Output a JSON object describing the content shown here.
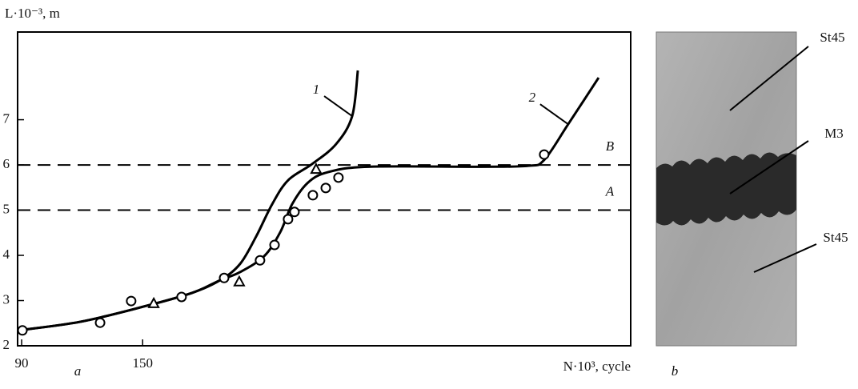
{
  "chart_data": {
    "type": "line",
    "y_label": "L·10⁻³, m",
    "x_label": "N·10³, cycle",
    "panel_label": "a",
    "xlim": [
      88,
      392
    ],
    "ylim": [
      2,
      8.94
    ],
    "xticks": [
      90,
      150
    ],
    "yticks": [
      2,
      3,
      4,
      5,
      6,
      7
    ],
    "grid": false,
    "color": "#000000",
    "series": [
      {
        "name": "1",
        "color": "#000000",
        "x": [
          88,
          119.0,
          150.7,
          174.5,
          188.4,
          198.3,
          206.3,
          214.2,
          222.1,
          234.0,
          245.9,
          253.9,
          256.7
        ],
        "values": [
          2.34,
          2.53,
          2.87,
          3.17,
          3.45,
          3.81,
          4.42,
          5.13,
          5.66,
          6.02,
          6.46,
          7.08,
          8.09
        ]
      },
      {
        "name": "2",
        "color": "#000000",
        "x": [
          88,
          119.0,
          150.7,
          174.5,
          188.4,
          198.3,
          210.2,
          218.2,
          224.1,
          232.0,
          241.9,
          261.8,
          317.4,
          341.2,
          349.1,
          361.0,
          376.1
        ],
        "values": [
          2.34,
          2.53,
          2.87,
          3.17,
          3.45,
          3.63,
          3.98,
          4.51,
          5.13,
          5.61,
          5.84,
          5.96,
          5.96,
          5.98,
          6.11,
          6.9,
          7.93
        ]
      }
    ],
    "points": [
      {
        "marker": "circle",
        "x": [
          90.4,
          128.9,
          144.3,
          169.3,
          190.4,
          208.2,
          215.4,
          222.1,
          225.3,
          234.4,
          240.8,
          247.1,
          349.1
        ],
        "values": [
          2.34,
          2.51,
          2.99,
          3.08,
          3.5,
          3.89,
          4.23,
          4.8,
          4.96,
          5.33,
          5.49,
          5.72,
          6.23
        ]
      },
      {
        "marker": "triangle",
        "x": [
          155.5,
          197.9,
          236.0
        ],
        "values": [
          2.94,
          3.42,
          5.91
        ]
      }
    ],
    "hlines": [
      {
        "label": "A",
        "value": 5
      },
      {
        "label": "B",
        "value": 6
      }
    ]
  },
  "photo": {
    "panel_label": "b",
    "labels": [
      "St45",
      "M3",
      "St45"
    ]
  }
}
